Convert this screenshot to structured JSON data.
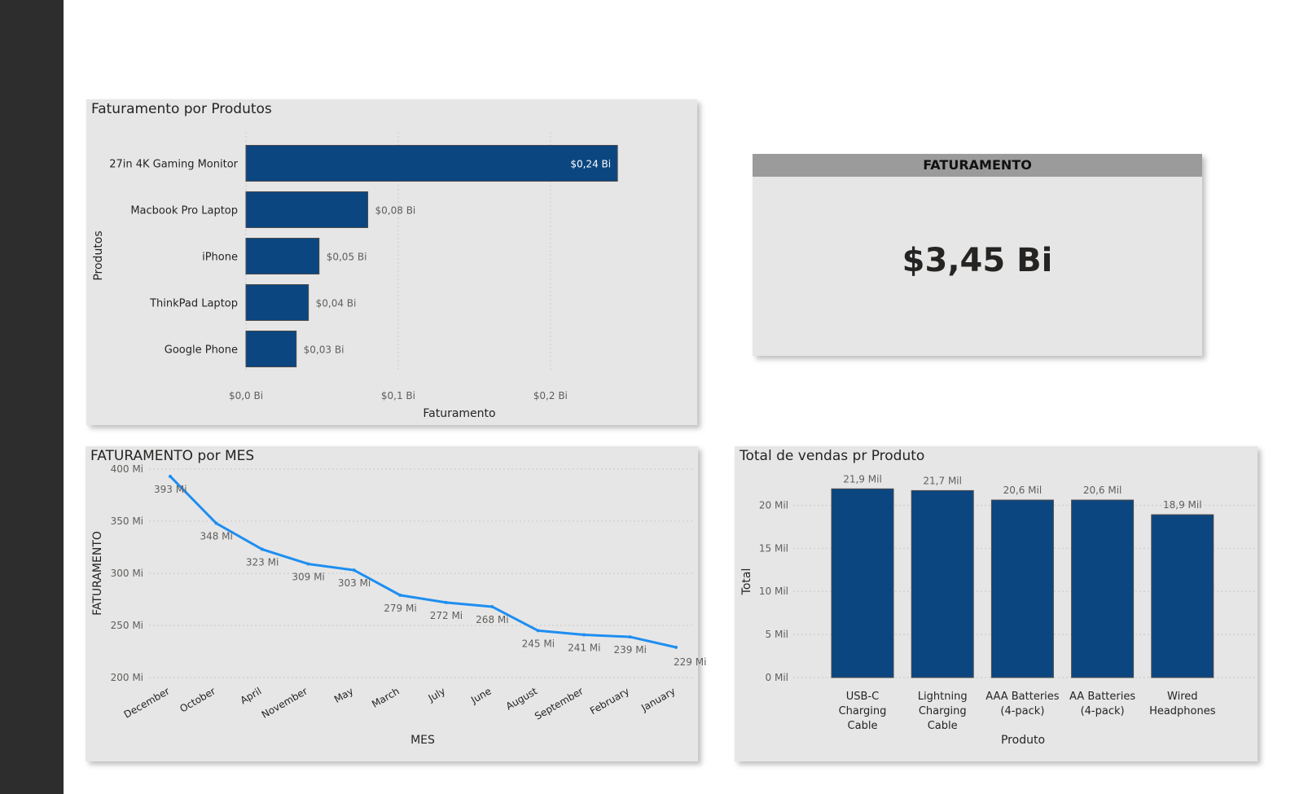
{
  "colors": {
    "bar": "#0b4680",
    "line": "#1e8ef0",
    "text": "#252423",
    "axis": "#605e5c",
    "grid": "#c8c8c8"
  },
  "bar_products": {
    "title": "Faturamento por Produtos",
    "xlabel": "Faturamento",
    "ylabel": "Produtos",
    "ticks": [
      "$0,0 Bi",
      "$0,1 Bi",
      "$0,2 Bi"
    ]
  },
  "kpi": {
    "header": "FATURAMENTO",
    "value": "$3,45 Bi"
  },
  "line_month": {
    "title": "FATURAMENTO por MES",
    "xlabel": "MES",
    "ylabel": "FATURAMENTO",
    "ticks": [
      "200 Mi",
      "250 Mi",
      "300 Mi",
      "350 Mi",
      "400 Mi"
    ]
  },
  "column_sales": {
    "title": "Total de vendas pr Produto",
    "xlabel": "Produto",
    "ylabel": "Total",
    "ticks": [
      "0 Mil",
      "5 Mil",
      "10 Mil",
      "15 Mil",
      "20 Mil"
    ]
  },
  "chart_data": [
    {
      "type": "bar",
      "orientation": "horizontal",
      "title": "Faturamento por Produtos",
      "xlabel": "Faturamento",
      "ylabel": "Produtos",
      "categories": [
        "27in 4K Gaming Monitor",
        "Macbook Pro Laptop",
        "iPhone",
        "ThinkPad Laptop",
        "Google Phone"
      ],
      "values": [
        0.244,
        0.08,
        0.048,
        0.041,
        0.033
      ],
      "labels": [
        "$0,24 Bi",
        "$0,08 Bi",
        "$0,05 Bi",
        "$0,04 Bi",
        "$0,03 Bi"
      ],
      "xlim": [
        0,
        0.26
      ],
      "grid": true
    },
    {
      "type": "line",
      "title": "FATURAMENTO por MES",
      "xlabel": "MES",
      "ylabel": "FATURAMENTO",
      "categories": [
        "December",
        "October",
        "April",
        "November",
        "May",
        "March",
        "July",
        "June",
        "August",
        "September",
        "February",
        "January"
      ],
      "values": [
        393,
        348,
        323,
        309,
        303,
        279,
        272,
        268,
        245,
        241,
        239,
        229
      ],
      "labels": [
        "393 Mi",
        "348 Mi",
        "323 Mi",
        "309 Mi",
        "303 Mi",
        "279 Mi",
        "272 Mi",
        "268 Mi",
        "245 Mi",
        "241 Mi",
        "239 Mi",
        "229 Mi"
      ],
      "ylim": [
        200,
        400
      ],
      "grid": true
    },
    {
      "type": "bar",
      "orientation": "vertical",
      "title": "Total de vendas pr Produto",
      "xlabel": "Produto",
      "ylabel": "Total",
      "categories": [
        [
          "USB-C",
          "Charging",
          "Cable"
        ],
        [
          "Lightning",
          "Charging",
          "Cable"
        ],
        [
          "AAA Batteries",
          "(4-pack)"
        ],
        [
          "AA Batteries",
          "(4-pack)"
        ],
        [
          "Wired",
          "Headphones"
        ]
      ],
      "values": [
        21.9,
        21.7,
        20.6,
        20.6,
        18.9
      ],
      "labels": [
        "21,9 Mil",
        "21,7 Mil",
        "20,6 Mil",
        "20,6 Mil",
        "18,9 Mil"
      ],
      "ylim": [
        0,
        22
      ],
      "grid": true
    }
  ]
}
